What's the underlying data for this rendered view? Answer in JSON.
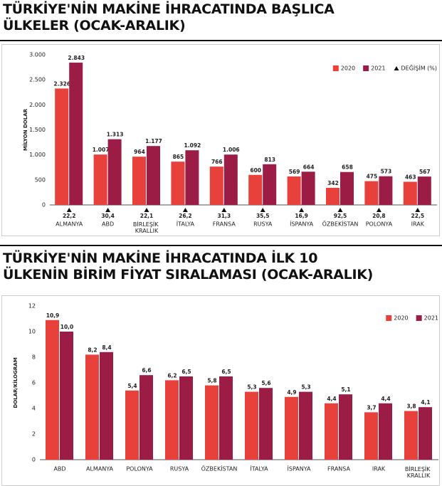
{
  "chart_data": [
    {
      "type": "bar",
      "title": "TÜRKİYE'NİN MAKİNE İHRACATINDA BAŞLICA ÜLKELER (OCAK-ARALIK)",
      "y_label": "MİLYON DOLAR",
      "categories": [
        "ALMANYA",
        "ABD",
        "BİRLEŞİK KRALLIK",
        "İTALYA",
        "FRANSA",
        "RUSYA",
        "İSPANYA",
        "ÖZBEKİSTAN",
        "POLONYA",
        "IRAK"
      ],
      "series": [
        {
          "name": "2020",
          "color": "#e8403a",
          "values": [
            2326,
            1007,
            964,
            865,
            766,
            600,
            569,
            342,
            475,
            463
          ],
          "value_labels": [
            "2.326",
            "1.007",
            "964",
            "865",
            "766",
            "600",
            "569",
            "342",
            "475",
            "463"
          ]
        },
        {
          "name": "2021",
          "color": "#9b1c45",
          "values": [
            2843,
            1313,
            1177,
            1092,
            1006,
            813,
            664,
            658,
            573,
            567
          ],
          "value_labels": [
            "2.843",
            "1.313",
            "1.177",
            "1.092",
            "1.006",
            "813",
            "664",
            "658",
            "573",
            "567"
          ]
        },
        {
          "name": "DEĞİŞİM (%)",
          "color": "#111111",
          "marker": "triangle",
          "values": [
            22.2,
            30.4,
            22.1,
            26.2,
            31.3,
            35.5,
            16.9,
            92.5,
            20.8,
            22.5
          ],
          "value_labels": [
            "22,2",
            "30,4",
            "22,1",
            "26,2",
            "31,3",
            "35,5",
            "16,9",
            "92,5",
            "20,8",
            "22,5"
          ]
        }
      ],
      "ylim": [
        0,
        3000
      ],
      "yticks": [
        0,
        {
          "value": 500,
          "label": "500"
        },
        {
          "value": 1000,
          "label": "1.000"
        },
        {
          "value": 1500,
          "label": "1.500"
        },
        {
          "value": 2000,
          "label": "2.000"
        },
        {
          "value": 2500,
          "label": "2.500"
        },
        {
          "value": 3000,
          "label": "3.000"
        }
      ],
      "grid": false,
      "legend": "top-right"
    },
    {
      "type": "bar",
      "title": "TÜRKİYE'NİN MAKİNE İHRACATINDA İLK 10 ÜLKENİN BİRİM FİYAT SIRALAMASI (OCAK-ARALIK)",
      "y_label": "DOLAR/KİLOGRAM",
      "categories": [
        "ABD",
        "ALMANYA",
        "POLONYA",
        "RUSYA",
        "ÖZBEKİSTAN",
        "İTALYA",
        "İSPANYA",
        "FRANSA",
        "IRAK",
        "BİRLEŞİK KRALLIK"
      ],
      "series": [
        {
          "name": "2020",
          "color": "#e8403a",
          "values": [
            10.9,
            8.2,
            5.4,
            6.2,
            5.8,
            5.3,
            4.9,
            4.4,
            3.7,
            3.8
          ],
          "value_labels": [
            "10,9",
            "8,2",
            "5,4",
            "6,2",
            "5,8",
            "5,3",
            "4,9",
            "4,4",
            "3,7",
            "3,8"
          ]
        },
        {
          "name": "2021",
          "color": "#9b1c45",
          "values": [
            10.0,
            8.4,
            6.6,
            6.5,
            6.5,
            5.6,
            5.3,
            5.1,
            4.4,
            4.1
          ],
          "value_labels": [
            "10,0",
            "8,4",
            "6,6",
            "6,5",
            "6,5",
            "5,6",
            "5,3",
            "5,1",
            "4,4",
            "4,1"
          ]
        }
      ],
      "ylim": [
        0,
        12
      ],
      "yticks": [
        0,
        2,
        4,
        6,
        8,
        10,
        12
      ],
      "grid": false,
      "legend": "top-right"
    }
  ]
}
